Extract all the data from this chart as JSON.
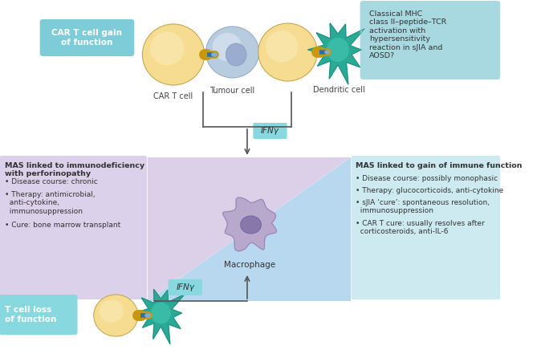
{
  "bg_color": "#ffffff",
  "top_box_color": "#7dccd8",
  "right_box_color": "#a8d8e0",
  "left_panel_color": "#d8cce8",
  "right_panel_color": "#c8e8f0",
  "center_tri_purple": "#d8cce8",
  "center_tri_blue": "#b8d8f0",
  "ifny_box_color": "#88d8e0",
  "tloss_box_color": "#88d8e0",
  "car_t_label": "CAR T cell gain\nof function",
  "car_t_cell_label": "CAR T cell",
  "tumour_cell_label": "Tumour cell",
  "dendritic_label": "Dendritic cell",
  "macrophage_label": "Macrophage",
  "ifny_label1": "IFNγ",
  "ifny_label2": "IFNγ",
  "t_cell_loss_label": "T cell loss\nof function",
  "classical_mhc_text": "Classical MHC\nclass II–peptide–TCR\nactivation with\nhypersensitivity\nreaction in sJIA and\nAOSD?",
  "left_panel_title": "MAS linked to immunodeficiency\nwith perforinopathy",
  "left_panel_bullets": [
    "Disease course: chronic",
    "Therapy: antimicrobial,\n  anti-cytokine,\n  immunosuppression",
    "Cure: bone marrow transplant"
  ],
  "right_panel_title": "MAS linked to gain of immune function",
  "right_panel_bullets": [
    "Disease course: possibly monophasic",
    "Therapy: glucocorticoids, anti-cytokine",
    "sJIA ‘cure’: spontaneous resolution,\n  immunosuppression",
    "CAR T cure: usually resolves after\n  corticosteroids, anti-IL-6"
  ],
  "cell_color_yellow": "#f5dc90",
  "cell_color_yellow_inner": "#f8e8b0",
  "cell_color_blue_light": "#b8cce0",
  "cell_color_blue_inner": "#d8e4f0",
  "cell_color_teal": "#2aaa96",
  "cell_color_teal_inner": "#1a8878",
  "cell_color_purple": "#b8a8cc",
  "cell_color_purple_inner": "#9888bb",
  "cell_color_nucleus": "#8878aa",
  "connector_gold": "#c8980c",
  "connector_blue": "#3070a0"
}
